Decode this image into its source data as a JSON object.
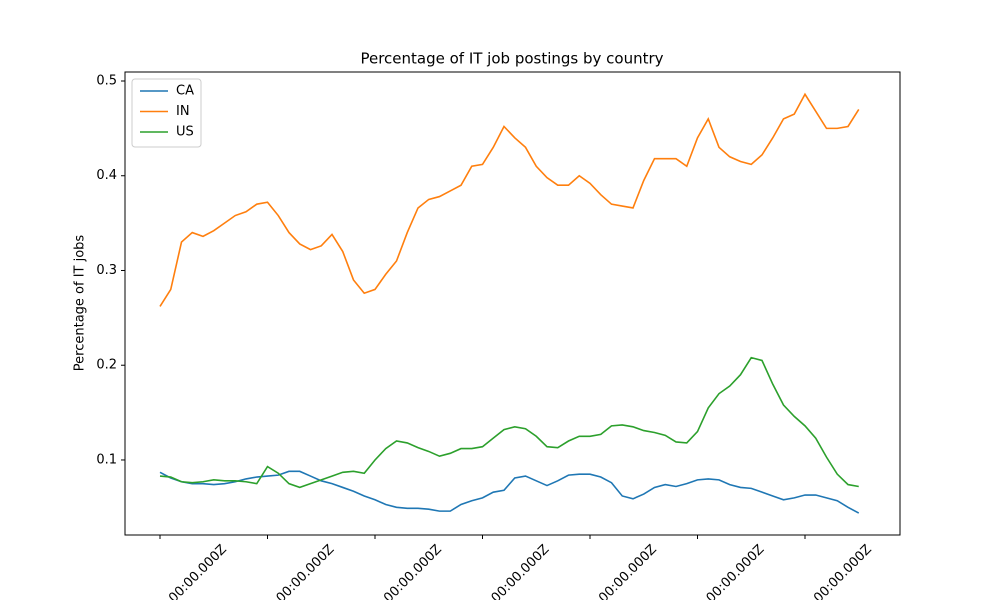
{
  "chart_data": {
    "type": "line",
    "title": "Percentage of IT job postings by country",
    "y_label": "Percentage of IT jobs",
    "categories": [
      "00:00.000Z",
      null,
      null,
      null,
      null,
      null,
      null,
      null,
      null,
      null,
      "00:00.000Z",
      null,
      null,
      null,
      null,
      null,
      null,
      null,
      null,
      null,
      "00:00.000Z",
      null,
      null,
      null,
      null,
      null,
      null,
      null,
      null,
      null,
      "00:00.000Z",
      null,
      null,
      null,
      null,
      null,
      null,
      null,
      null,
      null,
      "00:00.000Z",
      null,
      null,
      null,
      null,
      null,
      null,
      null,
      null,
      null,
      "00:00.000Z",
      null,
      null,
      null,
      null,
      null,
      null,
      null,
      null,
      null,
      "00:00.000Z",
      null,
      null,
      null,
      null,
      null
    ],
    "series": [
      {
        "name": "CA",
        "color": "#1f77b4",
        "values": [
          0.087,
          0.081,
          0.077,
          0.075,
          0.075,
          0.074,
          0.075,
          0.077,
          0.08,
          0.082,
          0.083,
          0.084,
          0.088,
          0.088,
          0.083,
          0.078,
          0.075,
          0.071,
          0.067,
          0.062,
          0.058,
          0.053,
          0.05,
          0.049,
          0.049,
          0.048,
          0.046,
          0.046,
          0.053,
          0.057,
          0.06,
          0.066,
          0.068,
          0.081,
          0.083,
          0.078,
          0.073,
          0.078,
          0.084,
          0.085,
          0.085,
          0.082,
          0.076,
          0.062,
          0.059,
          0.064,
          0.071,
          0.074,
          0.072,
          0.075,
          0.079,
          0.08,
          0.079,
          0.074,
          0.071,
          0.07,
          0.066,
          0.062,
          0.058,
          0.06,
          0.063,
          0.063,
          0.06,
          0.057,
          0.05,
          0.044
        ]
      },
      {
        "name": "IN",
        "color": "#ff7f0e",
        "values": [
          0.262,
          0.28,
          0.33,
          0.34,
          0.336,
          0.342,
          0.35,
          0.358,
          0.362,
          0.37,
          0.372,
          0.358,
          0.34,
          0.328,
          0.322,
          0.326,
          0.338,
          0.32,
          0.29,
          0.276,
          0.28,
          0.296,
          0.31,
          0.34,
          0.366,
          0.375,
          0.378,
          0.384,
          0.39,
          0.41,
          0.412,
          0.43,
          0.452,
          0.44,
          0.43,
          0.41,
          0.398,
          0.39,
          0.39,
          0.4,
          0.392,
          0.38,
          0.37,
          0.368,
          0.366,
          0.395,
          0.418,
          0.418,
          0.418,
          0.41,
          0.44,
          0.46,
          0.43,
          0.42,
          0.415,
          0.412,
          0.422,
          0.44,
          0.46,
          0.465,
          0.486,
          0.468,
          0.45,
          0.45,
          0.452,
          0.47
        ]
      },
      {
        "name": "US",
        "color": "#2ca02c",
        "values": [
          0.083,
          0.082,
          0.077,
          0.076,
          0.077,
          0.079,
          0.078,
          0.078,
          0.077,
          0.075,
          0.093,
          0.086,
          0.075,
          0.071,
          0.075,
          0.079,
          0.083,
          0.087,
          0.088,
          0.086,
          0.1,
          0.112,
          0.12,
          0.118,
          0.113,
          0.109,
          0.104,
          0.107,
          0.112,
          0.112,
          0.114,
          0.123,
          0.132,
          0.135,
          0.133,
          0.125,
          0.114,
          0.113,
          0.12,
          0.125,
          0.125,
          0.127,
          0.136,
          0.137,
          0.135,
          0.131,
          0.129,
          0.126,
          0.119,
          0.118,
          0.13,
          0.155,
          0.17,
          0.178,
          0.19,
          0.208,
          0.205,
          0.18,
          0.158,
          0.146,
          0.136,
          0.123,
          0.103,
          0.085,
          0.074,
          0.072
        ]
      }
    ],
    "ylim": [
      0.0208,
      0.5095
    ],
    "yticks": [
      0.1,
      0.2,
      0.3,
      0.4,
      0.5
    ],
    "legend": "upper-left"
  }
}
